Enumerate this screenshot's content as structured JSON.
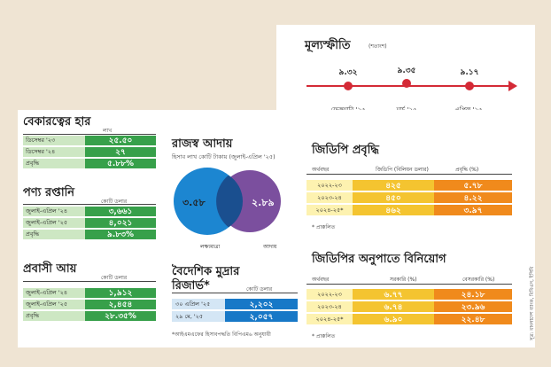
{
  "inflation": {
    "title": "মূল্যস্ফীতি",
    "unit": "(শতাংশ)",
    "points": [
      {
        "label": "ফেব্রুয়ারি '২৫",
        "value": "৯.৩২"
      },
      {
        "label": "মার্চ '২৫",
        "value": "৯.৩৫"
      },
      {
        "label": "এপ্রিল '২৫",
        "value": "৯.১৭"
      }
    ]
  },
  "unemployment": {
    "title": "বেকারত্বের হার",
    "unit": "লাখ",
    "rows": [
      {
        "label": "ডিসেম্বর '২৩",
        "value": "২৫.৫০"
      },
      {
        "label": "ডিসেম্বর '২৪",
        "value": "২৭"
      },
      {
        "label": "প্রবৃদ্ধি",
        "value": "৫.৮৮%"
      }
    ]
  },
  "exports": {
    "title": "পণ্য রপ্তানি",
    "unit": "কোটি ডলার",
    "rows": [
      {
        "label": "জুলাই-এপ্রিল '২৪",
        "value": "৩,৬৬১"
      },
      {
        "label": "জুলাই-এপ্রিল '২৫",
        "value": "৪,০২১"
      },
      {
        "label": "প্রবৃদ্ধি",
        "value": "৯.৮৩%"
      }
    ]
  },
  "remittance": {
    "title": "প্রবাসী আয়",
    "unit": "কোটি ডলার",
    "rows": [
      {
        "label": "জুলাই-এপ্রিল '২৪",
        "value": "১,৯১২"
      },
      {
        "label": "জুলাই-এপ্রিল '২৫",
        "value": "২,৪৫৪"
      },
      {
        "label": "প্রবৃদ্ধি",
        "value": "২৮.৩৫%"
      }
    ]
  },
  "revenue": {
    "title": "রাজস্ব আদায়",
    "subtitle": "হিসাব লাখ কোটি টাকায় (জুলাই-এপ্রিল '২৫)",
    "target_value": "৩.৫৮",
    "actual_value": "২.৮৯",
    "target_label": "লক্ষ্যমাত্রা",
    "actual_label": "আদায়",
    "target_color": "#1c86d1",
    "actual_color": "#7b4f9e"
  },
  "reserve": {
    "title_line1": "বৈদেশিক মুদ্রার",
    "title_line2": "রিজার্ভ*",
    "unit": "কোটি ডলার",
    "rows": [
      {
        "label": "৩০ এপ্রিল '২৫",
        "value": "২,২০২"
      },
      {
        "label": "২৯ মে, '২৫",
        "value": "২,০৫৭"
      }
    ],
    "note": "*আইএমএফের হিসাবপদ্ধতি বিপিএম৬ অনুযায়ী"
  },
  "gdp_growth": {
    "title": "জিডিপি প্রবৃদ্ধি",
    "headers": [
      "অর্থবছর",
      "জিডিপি (বিলিয়ন ডলার)",
      "প্রবৃদ্ধি (%)"
    ],
    "rows": [
      [
        "২০২২-২৩",
        "৪২৫",
        "৫.৭৮"
      ],
      [
        "২০২৩-২৪",
        "৪৫০",
        "৪.২২"
      ],
      [
        "২০২৪-২৫*",
        "৪৬২",
        "৩.৯৭"
      ]
    ],
    "note": "* প্রাক্কলিত"
  },
  "investment": {
    "title": "জিডিপির অনুপাতে বিনিয়োগ",
    "headers": [
      "অর্থবছর",
      "সরকারি (%)",
      "বেসরকারি (%)"
    ],
    "rows": [
      [
        "২০২২-২৩",
        "৬.৭৭",
        "২৪.১৮"
      ],
      [
        "২০২৩-২৪",
        "৬.৭৪",
        "২৩.৯৬"
      ],
      [
        "২০২৪-২৫*",
        "৬.৯০",
        "২২.৪৮"
      ]
    ],
    "note": "* প্রাক্কলিত"
  },
  "source": "সূত্র: বাংলাদেশ ব্যাংক, বিবিএস, ইপিবি"
}
